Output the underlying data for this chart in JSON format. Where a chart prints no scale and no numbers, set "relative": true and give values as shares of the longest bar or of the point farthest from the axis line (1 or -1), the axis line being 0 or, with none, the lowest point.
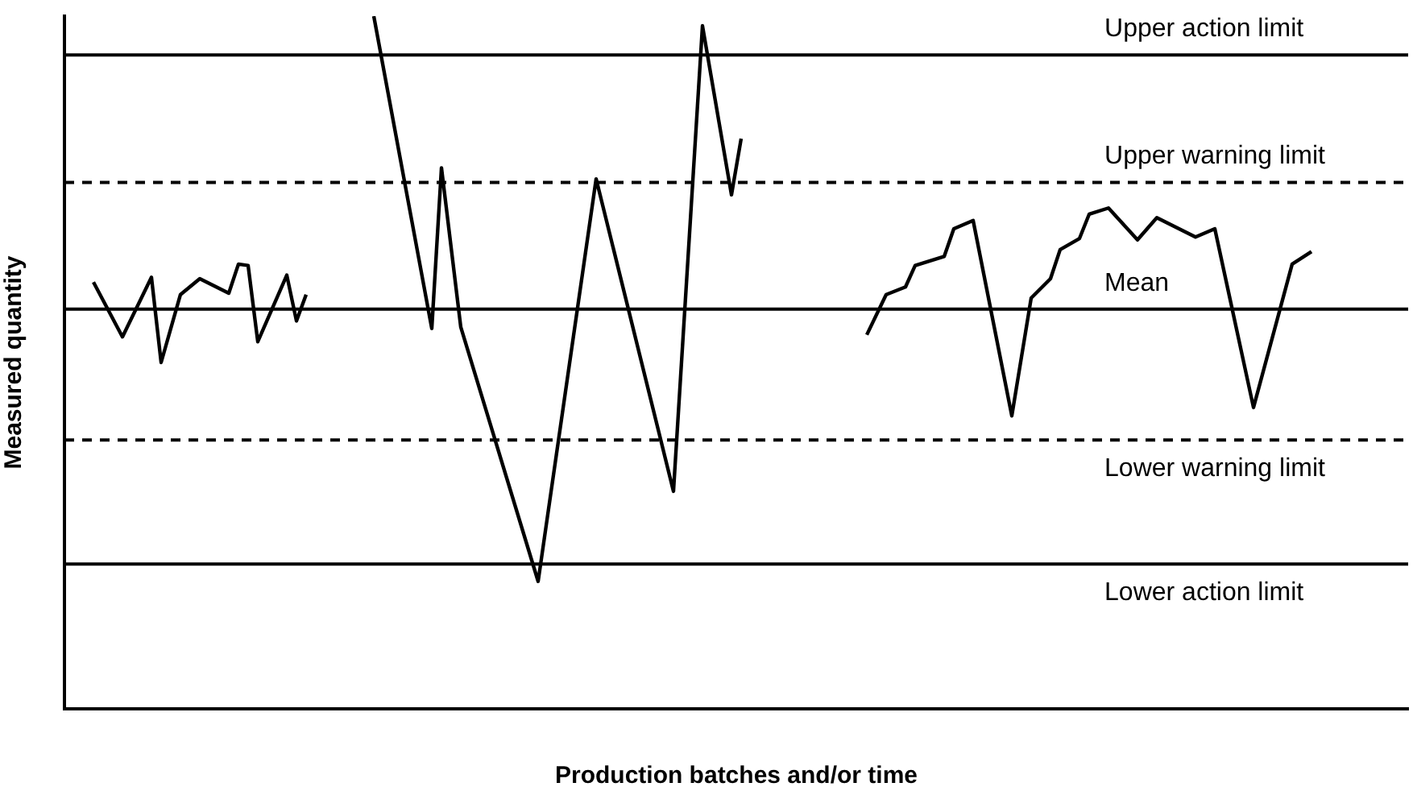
{
  "chart_data": {
    "type": "line",
    "xlabel": "Production batches and/or time",
    "ylabel": "Measured quantity",
    "relative": true,
    "legend": false,
    "grid": false,
    "marker": "none",
    "categories": [
      null,
      null,
      null,
      null,
      null,
      null,
      null,
      null,
      null,
      null,
      null,
      null,
      null,
      null,
      null,
      null,
      null,
      null,
      null,
      null,
      null,
      null,
      null,
      null,
      null,
      null,
      null,
      null,
      null,
      null,
      null,
      null,
      null,
      null,
      null,
      null,
      null,
      null,
      null,
      null,
      null,
      null,
      null,
      null,
      null,
      null,
      null,
      null,
      null,
      null,
      null,
      null,
      null,
      null,
      null,
      null,
      null,
      null,
      null,
      null,
      null,
      null,
      null,
      null,
      null,
      null,
      null,
      null,
      null,
      null,
      null,
      null,
      null,
      null,
      null,
      null,
      null,
      null,
      null,
      null,
      null,
      null,
      null,
      null,
      null,
      null,
      null,
      null,
      null,
      null,
      null,
      null,
      null,
      null,
      null,
      null,
      null,
      null,
      null,
      null,
      null,
      null,
      null,
      null,
      null,
      null,
      null,
      null,
      null,
      null,
      null,
      null,
      null,
      null,
      null,
      null,
      null,
      null,
      null,
      null,
      null,
      null,
      null,
      null,
      null,
      null,
      null,
      null,
      null,
      null,
      null,
      null,
      null,
      null,
      null,
      null,
      null,
      null,
      null,
      null
    ],
    "series": [
      {
        "color": "#000000",
        "values": [
          null,
          null,
          null,
          0.616,
          null,
          null,
          0.537,
          null,
          null,
          0.623,
          0.5,
          null,
          0.598,
          null,
          0.621,
          null,
          null,
          0.6,
          0.642,
          0.64,
          0.53,
          null,
          null,
          0.626,
          0.56,
          0.598,
          null,
          null,
          null,
          null,
          null,
          null,
          null,
          null,
          null,
          null,
          null,
          null,
          null,
          null,
          null,
          null,
          null,
          null,
          null,
          null,
          null,
          null,
          null,
          null,
          null,
          null,
          null,
          null,
          null,
          null,
          null,
          null,
          null,
          null,
          null,
          null,
          null,
          null,
          null,
          null,
          null,
          null,
          null,
          null,
          null,
          null,
          null,
          null,
          null,
          null,
          null,
          null,
          null,
          null,
          null,
          null,
          null,
          null,
          null,
          null,
          null,
          null,
          null,
          null,
          null,
          null,
          null,
          null,
          null,
          null,
          null,
          null,
          null,
          null,
          null,
          null,
          null,
          null,
          null,
          null,
          null,
          null,
          null,
          null,
          null,
          null,
          null,
          null,
          null,
          null,
          null,
          null,
          null,
          null,
          null,
          null,
          null,
          null,
          null,
          null,
          null,
          null,
          null,
          null,
          null,
          null,
          null,
          null,
          null,
          null,
          null,
          null,
          null,
          null
        ]
      },
      {
        "color": "#000000",
        "values": [
          null,
          null,
          null,
          null,
          null,
          null,
          null,
          null,
          null,
          null,
          null,
          null,
          null,
          null,
          null,
          null,
          null,
          null,
          null,
          null,
          null,
          null,
          null,
          null,
          null,
          null,
          null,
          null,
          null,
          null,
          null,
          null,
          1,
          null,
          null,
          null,
          null,
          null,
          0.549,
          0.781,
          null,
          0.551,
          null,
          null,
          null,
          null,
          null,
          null,
          null,
          0.184,
          null,
          null,
          null,
          null,
          null,
          0.765,
          null,
          null,
          null,
          null,
          null,
          null,
          null,
          0.314,
          null,
          null,
          0.986,
          null,
          null,
          0.742,
          0.823,
          null,
          null,
          null,
          null,
          null,
          null,
          null,
          null,
          null,
          null,
          null,
          null,
          null,
          null,
          null,
          null,
          null,
          null,
          null,
          null,
          null,
          null,
          null,
          null,
          null,
          null,
          null,
          null,
          null,
          null,
          null,
          null,
          null,
          null,
          null,
          null,
          null,
          null,
          null,
          null,
          null,
          null,
          null,
          null,
          null,
          null,
          null,
          null,
          null,
          null,
          null,
          null,
          null,
          null,
          null,
          null,
          null,
          null,
          null,
          null,
          null,
          null,
          null,
          null,
          null,
          null,
          null,
          null,
          null
        ]
      },
      {
        "color": "#000000",
        "values": [
          null,
          null,
          null,
          null,
          null,
          null,
          null,
          null,
          null,
          null,
          null,
          null,
          null,
          null,
          null,
          null,
          null,
          null,
          null,
          null,
          null,
          null,
          null,
          null,
          null,
          null,
          null,
          null,
          null,
          null,
          null,
          null,
          null,
          null,
          null,
          null,
          null,
          null,
          null,
          null,
          null,
          null,
          null,
          null,
          null,
          null,
          null,
          null,
          null,
          null,
          null,
          null,
          null,
          null,
          null,
          null,
          null,
          null,
          null,
          null,
          null,
          null,
          null,
          null,
          null,
          null,
          null,
          null,
          null,
          null,
          null,
          null,
          null,
          null,
          null,
          null,
          null,
          null,
          null,
          null,
          null,
          null,
          null,
          0.54,
          null,
          0.598,
          null,
          0.609,
          0.64,
          null,
          null,
          0.653,
          0.693,
          null,
          0.705,
          null,
          null,
          null,
          0.423,
          null,
          0.593,
          null,
          0.621,
          0.663,
          null,
          0.679,
          0.714,
          null,
          0.723,
          null,
          null,
          0.677,
          null,
          0.709,
          null,
          null,
          null,
          0.681,
          null,
          0.693,
          null,
          null,
          null,
          0.435,
          null,
          null,
          null,
          0.642,
          null,
          0.66,
          null,
          null,
          null,
          null,
          null,
          null,
          null,
          null,
          null,
          null
        ]
      }
    ],
    "ref_lines": [
      {
        "axis": "y",
        "value": 0.944,
        "label": "Upper action limit",
        "color": "#000000",
        "line_style": "solid"
      },
      {
        "axis": "y",
        "value": 0.76,
        "label": "Upper warning limit",
        "color": "#000000",
        "line_style": "dashed"
      },
      {
        "axis": "y",
        "value": 0.577,
        "label": "Mean",
        "color": "#000000",
        "line_style": "solid"
      },
      {
        "axis": "y",
        "value": 0.388,
        "label": "Lower warning limit",
        "color": "#000000",
        "line_style": "dashed"
      },
      {
        "axis": "y",
        "value": 0.209,
        "label": "Lower action limit",
        "color": "#000000",
        "line_style": "solid"
      }
    ]
  }
}
